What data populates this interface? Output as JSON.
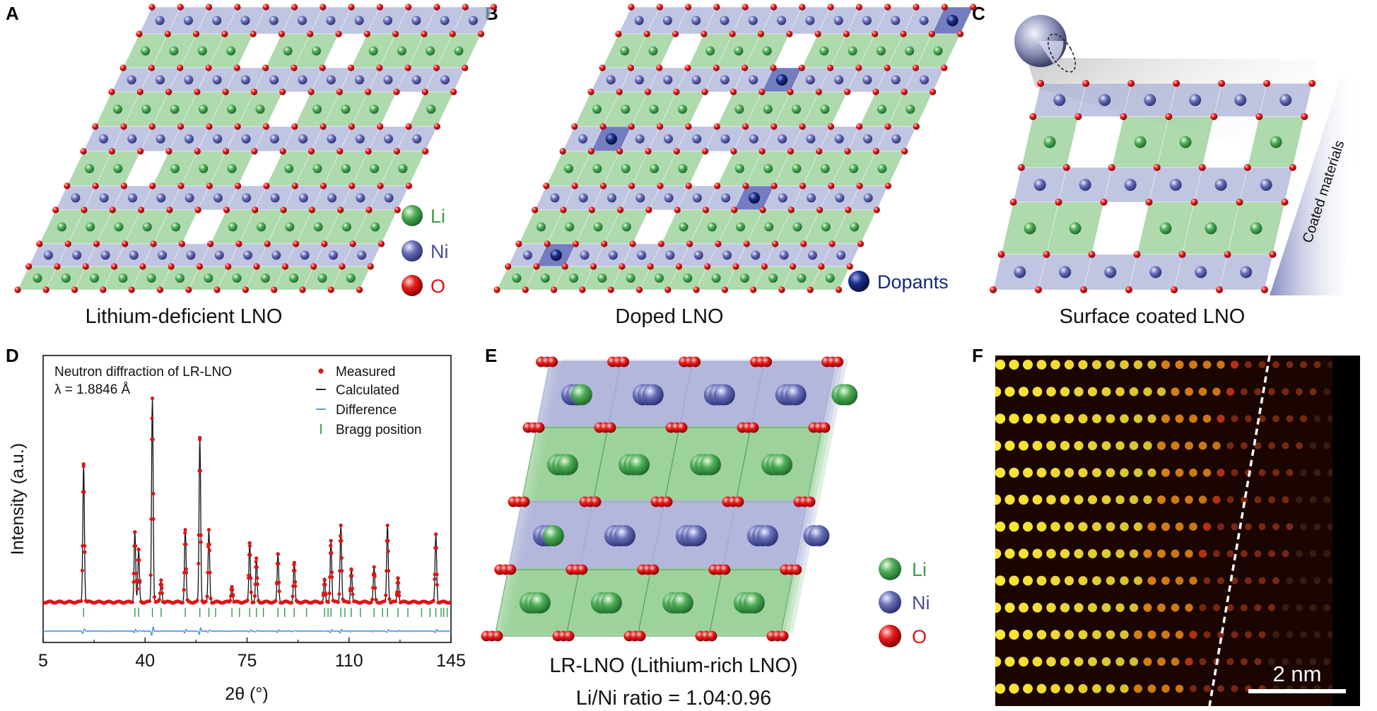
{
  "panels": {
    "a": {
      "label": "A",
      "caption": "Lithium-deficient LNO"
    },
    "b": {
      "label": "B",
      "caption": "Doped LNO",
      "dopant_label": "Dopants"
    },
    "c": {
      "label": "C",
      "caption": "Surface coated LNO",
      "coating_label": "Coated materials"
    },
    "d": {
      "label": "D"
    },
    "e": {
      "label": "E",
      "caption": "LR-LNO (Lithium-rich LNO)",
      "ratio": "Li/Ni ratio = 1.04:0.96"
    },
    "f": {
      "label": "F",
      "scalebar": "2 nm"
    }
  },
  "legend": {
    "li": "Li",
    "ni": "Ni",
    "o": "O"
  },
  "colors": {
    "li": "#3f9a4a",
    "ni": "#5a60a8",
    "o": "#e01818",
    "dopant": "#16287a",
    "li_layer": "#8fcc8f",
    "ni_layer": "#a8aed6"
  },
  "chart_data": {
    "type": "line",
    "title": "Neutron diffraction of LR-LNO",
    "subtitle": "λ = 1.8846 Å",
    "xlabel": "2θ (°)",
    "ylabel": "Intensity (a.u.)",
    "xlim": [
      5,
      145
    ],
    "xticks": [
      5,
      40,
      75,
      110,
      145
    ],
    "ylim": [
      0,
      1
    ],
    "legend_position": "top-right",
    "legend": {
      "measured": "Measured",
      "calculated": "Calculated",
      "difference": "Difference",
      "bragg": "Bragg position"
    },
    "peaks": [
      {
        "x": 18.9,
        "y": 0.63
      },
      {
        "x": 36.5,
        "y": 0.32
      },
      {
        "x": 37.8,
        "y": 0.24
      },
      {
        "x": 42.5,
        "y": 0.93
      },
      {
        "x": 45.5,
        "y": 0.1
      },
      {
        "x": 53.8,
        "y": 0.33
      },
      {
        "x": 58.8,
        "y": 0.75
      },
      {
        "x": 61.9,
        "y": 0.33
      },
      {
        "x": 69.8,
        "y": 0.07
      },
      {
        "x": 75.9,
        "y": 0.27
      },
      {
        "x": 78.2,
        "y": 0.2
      },
      {
        "x": 85.6,
        "y": 0.22
      },
      {
        "x": 91.2,
        "y": 0.18
      },
      {
        "x": 101.6,
        "y": 0.1
      },
      {
        "x": 103.8,
        "y": 0.28
      },
      {
        "x": 107.2,
        "y": 0.35
      },
      {
        "x": 110.8,
        "y": 0.15
      },
      {
        "x": 118.6,
        "y": 0.16
      },
      {
        "x": 123.2,
        "y": 0.35
      },
      {
        "x": 126.8,
        "y": 0.11
      },
      {
        "x": 139.8,
        "y": 0.31
      }
    ],
    "bragg_positions": [
      18.9,
      36.5,
      37.8,
      42.5,
      45.5,
      53.8,
      58.8,
      61.9,
      64.2,
      69.8,
      72.4,
      75.9,
      78.2,
      80.6,
      85.6,
      87.9,
      91.2,
      95.4,
      101.6,
      102.8,
      103.8,
      107.2,
      108.6,
      110.8,
      113.9,
      118.6,
      121.5,
      123.2,
      126.8,
      130.2,
      134.9,
      137.8,
      139.8,
      141.6,
      142.5,
      143.7
    ]
  }
}
